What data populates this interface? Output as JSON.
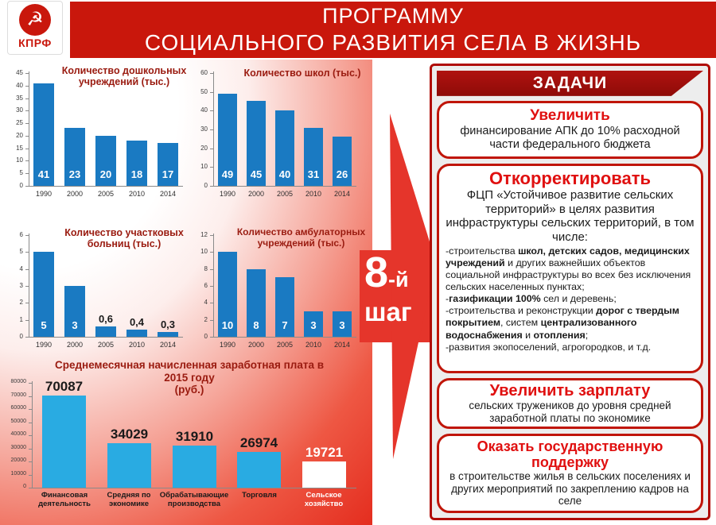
{
  "header": {
    "logo_text": "КПРФ",
    "logo_emblem": "hammer-and-sickle",
    "title_line1": "ПРОГРАММУ",
    "title_line2": "СОЦИАЛЬНОГО РАЗВИТИЯ СЕЛА В ЖИЗНЬ"
  },
  "arrow": {
    "step_number": "8",
    "step_suffix": "-й",
    "step_word": "шаг"
  },
  "colors": {
    "banner_red": "#C9170C",
    "panel_dark_red": "#A00D0A",
    "accent_red": "#E01010",
    "arrow_red": "#E5352B",
    "bar_blue": "#1A7AC2",
    "bar_cyan": "#29ABE2",
    "title_maroon": "#9A1B10"
  },
  "chart_data": [
    {
      "id": "kindergartens",
      "type": "bar",
      "title": "Количество дошкольных учреждений (тыс.)",
      "categories": [
        "1990",
        "2000",
        "2005",
        "2010",
        "2014"
      ],
      "values": [
        41,
        23,
        20,
        18,
        17
      ],
      "value_labels": [
        "41",
        "23",
        "20",
        "18",
        "17"
      ],
      "label_positions": [
        "inside",
        "inside",
        "inside",
        "inside",
        "inside"
      ],
      "label_colors": [
        "#ffffff",
        "#ffffff",
        "#ffffff",
        "#ffffff",
        "#ffffff"
      ],
      "bar_colors": [
        "#1A7AC2",
        "#1A7AC2",
        "#1A7AC2",
        "#1A7AC2",
        "#1A7AC2"
      ],
      "ylim": [
        0,
        45
      ],
      "ytick_step": 5,
      "grid": false,
      "legend": false
    },
    {
      "id": "schools",
      "type": "bar",
      "title": "Количество школ (тыс.)",
      "categories": [
        "1990",
        "2000",
        "2005",
        "2010",
        "2014"
      ],
      "values": [
        49,
        45,
        40,
        31,
        26
      ],
      "value_labels": [
        "49",
        "45",
        "40",
        "31",
        "26"
      ],
      "label_positions": [
        "inside",
        "inside",
        "inside",
        "inside",
        "inside"
      ],
      "label_colors": [
        "#ffffff",
        "#ffffff",
        "#ffffff",
        "#ffffff",
        "#ffffff"
      ],
      "bar_colors": [
        "#1A7AC2",
        "#1A7AC2",
        "#1A7AC2",
        "#1A7AC2",
        "#1A7AC2"
      ],
      "ylim": [
        0,
        60
      ],
      "ytick_step": 10,
      "grid": false,
      "legend": false
    },
    {
      "id": "rural-hospitals",
      "type": "bar",
      "title": "Количество участковых больниц (тыс.)",
      "categories": [
        "1990",
        "2000",
        "2005",
        "2010",
        "2014"
      ],
      "values": [
        5,
        3,
        0.6,
        0.4,
        0.3
      ],
      "value_labels": [
        "5",
        "3",
        "0,6",
        "0,4",
        "0,3"
      ],
      "label_positions": [
        "inside",
        "inside",
        "above",
        "above",
        "above"
      ],
      "label_colors": [
        "#ffffff",
        "#ffffff",
        "#1a1a1a",
        "#1a1a1a",
        "#1a1a1a"
      ],
      "bar_colors": [
        "#1A7AC2",
        "#1A7AC2",
        "#1A7AC2",
        "#1A7AC2",
        "#1A7AC2"
      ],
      "ylim": [
        0,
        6
      ],
      "ytick_step": 1,
      "grid": false,
      "legend": false
    },
    {
      "id": "ambulatory",
      "type": "bar",
      "title": "Количество амбулаторных учреждений (тыс.)",
      "categories": [
        "1990",
        "2000",
        "2005",
        "2010",
        "2014"
      ],
      "values": [
        10,
        8,
        7,
        3,
        3
      ],
      "value_labels": [
        "10",
        "8",
        "7",
        "3",
        "3"
      ],
      "label_positions": [
        "inside",
        "inside",
        "inside",
        "inside",
        "inside"
      ],
      "label_colors": [
        "#ffffff",
        "#ffffff",
        "#ffffff",
        "#ffffff",
        "#ffffff"
      ],
      "bar_colors": [
        "#1A7AC2",
        "#1A7AC2",
        "#1A7AC2",
        "#1A7AC2",
        "#1A7AC2"
      ],
      "ylim": [
        0,
        12
      ],
      "ytick_step": 2,
      "grid": false,
      "legend": false
    },
    {
      "id": "wages-2015",
      "type": "bar",
      "title": "Среднемесячная начисленная заработная плата в 2015 году",
      "subtitle": "(руб.)",
      "categories": [
        "Финансовая деятельность",
        "Средняя по экономике",
        "Обрабатывающие производства",
        "Торговля",
        "Сельское хозяйство"
      ],
      "values": [
        70087,
        34029,
        31910,
        26974,
        19721
      ],
      "value_labels": [
        "70087",
        "34029",
        "31910",
        "26974",
        "19721"
      ],
      "label_positions": [
        "above",
        "above",
        "above",
        "above",
        "above"
      ],
      "label_colors": [
        "#1a1a1a",
        "#1a1a1a",
        "#1a1a1a",
        "#1a1a1a",
        "#ffffff"
      ],
      "bar_colors": [
        "#29ABE2",
        "#29ABE2",
        "#29ABE2",
        "#29ABE2",
        "#FFFFFF"
      ],
      "category_colors": [
        "#1a1a1a",
        "#1a1a1a",
        "#1a1a1a",
        "#1a1a1a",
        "#ffffff"
      ],
      "ylim": [
        0,
        80000
      ],
      "ytick_step": 10000,
      "grid": false,
      "legend": false
    }
  ],
  "tasks": {
    "header": "ЗАДАЧИ",
    "boxes": [
      {
        "title": "Увеличить",
        "body": "финансирование АПК до 10% расходной части федерального бюджета"
      },
      {
        "title": "Откорректировать",
        "intro": "ФЦП «Устойчивое развитие сельских территорий» в целях развития инфраструктуры сельских территорий, в том числе:",
        "items": [
          [
            {
              "t": "-строительства "
            },
            {
              "t": "школ, детских садов, медицинских учреждений",
              "b": true
            },
            {
              "t": " и других важнейших объектов социальной инфраструктуры во всех без исключения сельских населенных пунктах;"
            }
          ],
          [
            {
              "t": "-"
            },
            {
              "t": "газификации 100%",
              "b": true
            },
            {
              "t": " сел и деревень;"
            }
          ],
          [
            {
              "t": "-строительства и реконструкции "
            },
            {
              "t": "дорог с твердым покрытием",
              "b": true
            },
            {
              "t": ", систем "
            },
            {
              "t": "централизованного водоснабжения",
              "b": true
            },
            {
              "t": " и "
            },
            {
              "t": "отопления",
              "b": true
            },
            {
              "t": ";"
            }
          ],
          [
            {
              "t": "-развития экопоселений, агрогородков, и т.д."
            }
          ]
        ]
      },
      {
        "title": "Увеличить зарплату",
        "body": "сельских тружеников до уровня средней заработной платы по экономике"
      },
      {
        "title": "Оказать государственную поддержку",
        "body": "в строительстве жилья в сельских поселениях и других мероприятий по закреплению кадров на селе"
      }
    ]
  }
}
